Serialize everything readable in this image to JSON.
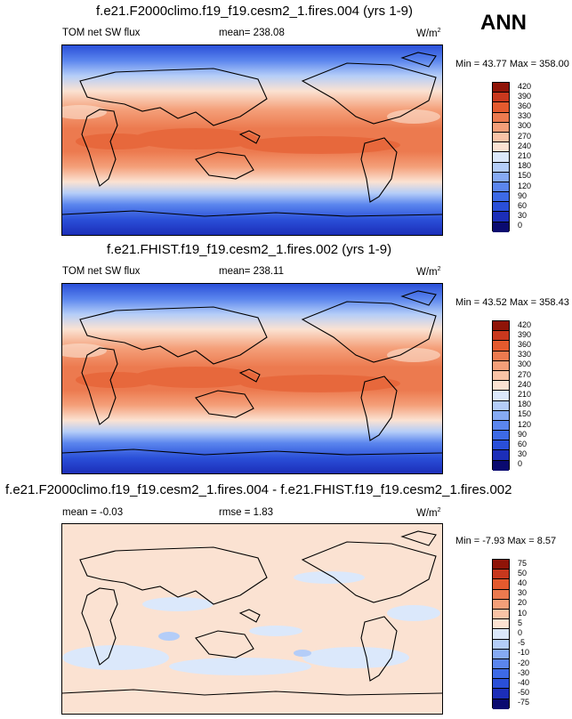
{
  "season": "ANN",
  "panels": [
    {
      "title": "f.e21.F2000climo.f19_f19.cesm2_1.fires.004 (yrs 1-9)",
      "left_label": "TOM net SW flux",
      "center_label": "mean= 238.08",
      "units_base": "W/m",
      "units_exp": "2",
      "minmax": "Min =  43.77 Max = 358.00"
    },
    {
      "title": "f.e21.FHIST.f19_f19.cesm2_1.fires.002 (yrs 1-9)",
      "left_label": "TOM net SW flux",
      "center_label": "mean= 238.11",
      "units_base": "W/m",
      "units_exp": "2",
      "minmax": "Min =  43.52 Max = 358.43"
    },
    {
      "title": "f.e21.F2000climo.f19_f19.cesm2_1.fires.004 - f.e21.FHIST.f19_f19.cesm2_1.fires.002",
      "left_label": "mean =  -0.03",
      "center_label": "rmse =   1.83",
      "units_base": "W/m",
      "units_exp": "2",
      "minmax": "Min =  -7.93 Max =   8.57"
    }
  ],
  "chart_data": [
    {
      "type": "heatmap",
      "field": "TOM net SW flux",
      "units": "W/m2",
      "mean": 238.08,
      "min": 43.77,
      "max": 358.0,
      "levels": [
        0,
        30,
        60,
        90,
        120,
        150,
        180,
        210,
        240,
        270,
        300,
        330,
        360,
        390,
        420
      ],
      "level_labels": [
        "420",
        "390",
        "360",
        "330",
        "300",
        "270",
        "240",
        "210",
        "180",
        "150",
        "120",
        "90",
        "60",
        "30",
        "0"
      ],
      "colors": [
        "#0a0a70",
        "#1c2eb8",
        "#2a4fd8",
        "#3d6ae6",
        "#5b86ee",
        "#86aaf3",
        "#b4cdf8",
        "#dbe8fb",
        "#fbe2d2",
        "#f9c3a6",
        "#f49f79",
        "#ec7a4f",
        "#e45a2e",
        "#c8381e",
        "#8f1408"
      ]
    },
    {
      "type": "heatmap",
      "field": "TOM net SW flux",
      "units": "W/m2",
      "mean": 238.11,
      "min": 43.52,
      "max": 358.43,
      "levels": [
        0,
        30,
        60,
        90,
        120,
        150,
        180,
        210,
        240,
        270,
        300,
        330,
        360,
        390,
        420
      ],
      "level_labels": [
        "420",
        "390",
        "360",
        "330",
        "300",
        "270",
        "240",
        "210",
        "180",
        "150",
        "120",
        "90",
        "60",
        "30",
        "0"
      ],
      "colors": [
        "#0a0a70",
        "#1c2eb8",
        "#2a4fd8",
        "#3d6ae6",
        "#5b86ee",
        "#86aaf3",
        "#b4cdf8",
        "#dbe8fb",
        "#fbe2d2",
        "#f9c3a6",
        "#f49f79",
        "#ec7a4f",
        "#e45a2e",
        "#c8381e",
        "#8f1408"
      ]
    },
    {
      "type": "heatmap",
      "field": "difference",
      "units": "W/m2",
      "mean": -0.03,
      "rmse": 1.83,
      "min": -7.93,
      "max": 8.57,
      "levels": [
        -75,
        -50,
        -40,
        -30,
        -20,
        -10,
        -5,
        0,
        5,
        10,
        20,
        30,
        40,
        50,
        75
      ],
      "level_labels": [
        "75",
        "50",
        "40",
        "30",
        "20",
        "10",
        "5",
        "0",
        "-5",
        "-10",
        "-20",
        "-30",
        "-40",
        "-50",
        "-75"
      ],
      "colors": [
        "#0a0a70",
        "#1c2eb8",
        "#2a4fd8",
        "#3d6ae6",
        "#5b86ee",
        "#86aaf3",
        "#b4cdf8",
        "#dbe8fb",
        "#fbe2d2",
        "#f9c3a6",
        "#f49f79",
        "#ec7a4f",
        "#e45a2e",
        "#c8381e",
        "#8f1408"
      ]
    }
  ]
}
